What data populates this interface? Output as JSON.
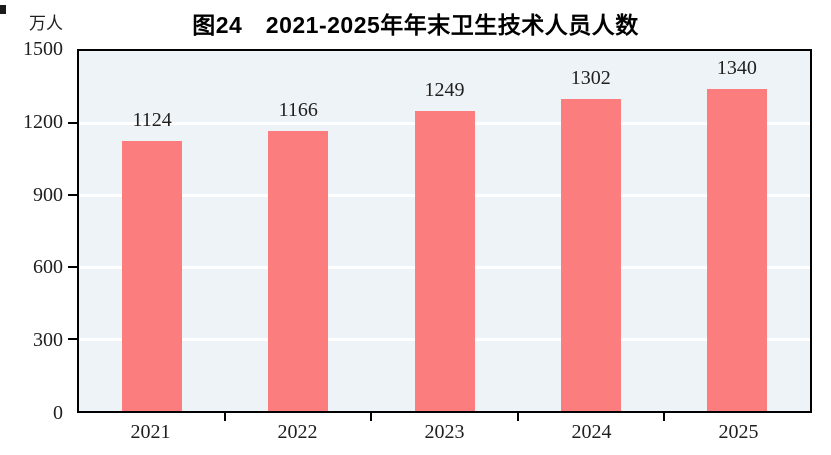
{
  "chart_data": {
    "type": "bar",
    "title": "图24　2021-2025年年末卫生技术人员人数",
    "unit_label": "万人",
    "categories": [
      "2021",
      "2022",
      "2023",
      "2024",
      "2025"
    ],
    "values": [
      1124,
      1166,
      1249,
      1302,
      1340
    ],
    "xlabel": "",
    "ylabel": "万人",
    "ylim": [
      0,
      1500
    ],
    "yticks": [
      0,
      300,
      600,
      900,
      1200,
      1500
    ],
    "grid": true,
    "legend": false,
    "value_labels_shown": true,
    "colors": {
      "bar": "#FC7D7D",
      "plot_bg": "#EDF3F7",
      "gridline": "#FFFFFF",
      "axis": "#000000",
      "text": "#1F1F1F",
      "title": "#000000",
      "page_bg": "#FFFFFF"
    }
  }
}
